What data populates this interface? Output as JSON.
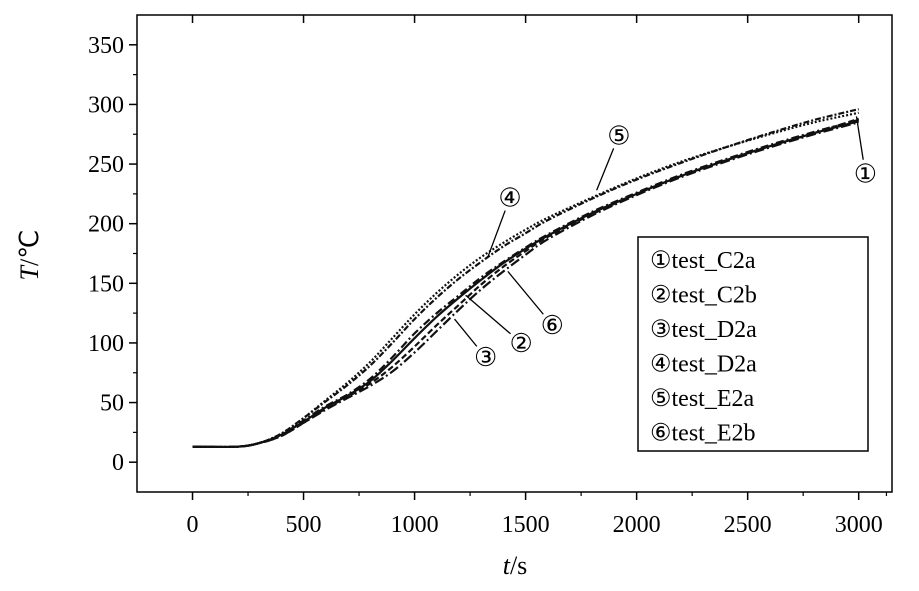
{
  "chart_data": {
    "type": "line",
    "title": "",
    "xlabel": {
      "italic": "t",
      "unit": "/s"
    },
    "ylabel": {
      "italic": "T",
      "unit": "/℃"
    },
    "xlim": [
      -250,
      3150
    ],
    "ylim": [
      -25,
      375
    ],
    "xticks": [
      0,
      500,
      1000,
      1500,
      2000,
      2500,
      3000
    ],
    "yticks": [
      0,
      50,
      100,
      150,
      200,
      250,
      300,
      350
    ],
    "grid": false,
    "legend_position": "center-right",
    "series": [
      {
        "name": "①test_C2a",
        "marker": "①",
        "dash": "8,3,2,3",
        "x": [
          0,
          200,
          300,
          400,
          500,
          600,
          700,
          800,
          900,
          1000,
          1100,
          1200,
          1300,
          1400,
          1500,
          1600,
          1800,
          2000,
          2200,
          2400,
          2600,
          2800,
          3000
        ],
        "y": [
          13,
          13,
          16,
          23,
          35,
          47,
          57,
          70,
          88,
          108,
          125,
          140,
          155,
          168,
          180,
          191,
          210,
          226,
          241,
          254,
          266,
          277,
          287
        ]
      },
      {
        "name": "②test_C2b",
        "marker": "②",
        "dash": "",
        "x": [
          0,
          200,
          300,
          400,
          500,
          600,
          700,
          800,
          900,
          1000,
          1100,
          1200,
          1300,
          1400,
          1500,
          1600,
          1800,
          2000,
          2200,
          2400,
          2600,
          2800,
          3000
        ],
        "y": [
          13,
          13,
          16,
          23,
          34,
          46,
          56,
          68,
          85,
          104,
          122,
          138,
          153,
          167,
          179,
          190,
          209,
          225,
          240,
          253,
          265,
          276,
          286
        ]
      },
      {
        "name": "③test_D2a",
        "marker": "③",
        "dash": "10,3,2,3",
        "x": [
          0,
          200,
          300,
          400,
          500,
          600,
          700,
          800,
          900,
          1000,
          1100,
          1200,
          1300,
          1400,
          1500,
          1600,
          1800,
          2000,
          2200,
          2400,
          2600,
          2800,
          3000
        ],
        "y": [
          13,
          13,
          16,
          22,
          33,
          44,
          54,
          64,
          76,
          92,
          110,
          128,
          145,
          160,
          174,
          187,
          207,
          224,
          239,
          252,
          264,
          275,
          285
        ]
      },
      {
        "name": "④test_D2a",
        "marker": "④",
        "dash": "2,2",
        "x": [
          0,
          200,
          300,
          400,
          500,
          600,
          700,
          800,
          900,
          1000,
          1100,
          1200,
          1300,
          1400,
          1500,
          1600,
          1800,
          2000,
          2200,
          2400,
          2600,
          2800,
          3000
        ],
        "y": [
          13,
          13,
          16,
          24,
          37,
          52,
          67,
          84,
          104,
          124,
          142,
          158,
          172,
          184,
          195,
          205,
          222,
          238,
          252,
          264,
          275,
          285,
          293
        ]
      },
      {
        "name": "⑤test_E2a",
        "marker": "⑤",
        "dash": "6,2,2,2",
        "x": [
          0,
          200,
          300,
          400,
          500,
          600,
          700,
          800,
          900,
          1000,
          1100,
          1200,
          1300,
          1400,
          1500,
          1600,
          1800,
          2000,
          2200,
          2400,
          2600,
          2800,
          3000
        ],
        "y": [
          13,
          13,
          16,
          24,
          37,
          51,
          65,
          81,
          100,
          120,
          138,
          154,
          168,
          181,
          192,
          203,
          221,
          237,
          251,
          264,
          276,
          287,
          296
        ]
      },
      {
        "name": "⑥test_E2b",
        "marker": "⑥",
        "dash": "6,3",
        "x": [
          0,
          200,
          300,
          400,
          500,
          600,
          700,
          800,
          900,
          1000,
          1100,
          1200,
          1300,
          1400,
          1500,
          1600,
          1800,
          2000,
          2200,
          2400,
          2600,
          2800,
          3000
        ],
        "y": [
          13,
          13,
          16,
          22,
          33,
          45,
          55,
          66,
          80,
          97,
          115,
          132,
          149,
          164,
          177,
          189,
          208,
          225,
          240,
          253,
          265,
          276,
          288
        ]
      }
    ],
    "annotations": [
      {
        "label": "①",
        "series": "①test_C2a",
        "point": [
          2990,
          290
        ],
        "text_at": [
          3030,
          242
        ]
      },
      {
        "label": "②",
        "series": "②test_C2b",
        "point": [
          1230,
          140
        ],
        "text_at": [
          1480,
          100
        ]
      },
      {
        "label": "③",
        "series": "③test_D2a",
        "point": [
          1180,
          120
        ],
        "text_at": [
          1320,
          88
        ]
      },
      {
        "label": "④",
        "series": "④test_D2a",
        "point": [
          1330,
          172
        ],
        "text_at": [
          1430,
          222
        ]
      },
      {
        "label": "⑤",
        "series": "⑤test_E2a",
        "point": [
          1820,
          228
        ],
        "text_at": [
          1920,
          274
        ]
      },
      {
        "label": "⑥",
        "series": "⑥test_E2b",
        "point": [
          1420,
          160
        ],
        "text_at": [
          1620,
          115
        ]
      }
    ]
  }
}
